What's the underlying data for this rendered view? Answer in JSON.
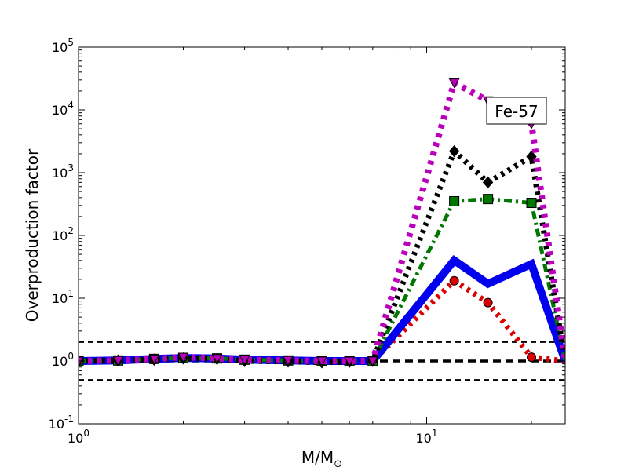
{
  "chart_data": {
    "type": "line",
    "title": "",
    "xlabel_main": "M/M",
    "xlabel_sub": "⊙",
    "ylabel": "Overproduction factor",
    "annotation": "Fe-57",
    "x_scale": "log",
    "y_scale": "log",
    "xlim": [
      1,
      25
    ],
    "ylim": [
      0.1,
      100000
    ],
    "x_ticks": [
      {
        "value": 1,
        "base": "10",
        "exp": "0"
      },
      {
        "value": 10,
        "base": "10",
        "exp": "1"
      }
    ],
    "y_ticks": [
      {
        "value": 0.1,
        "base": "10",
        "exp": "-1"
      },
      {
        "value": 1,
        "base": "10",
        "exp": "0"
      },
      {
        "value": 10,
        "base": "10",
        "exp": "1"
      },
      {
        "value": 100,
        "base": "10",
        "exp": "2"
      },
      {
        "value": 1000,
        "base": "10",
        "exp": "3"
      },
      {
        "value": 10000,
        "base": "10",
        "exp": "4"
      },
      {
        "value": 100000,
        "base": "10",
        "exp": "5"
      }
    ],
    "reference_lines": [
      {
        "y": 2,
        "style": "dashed",
        "color": "#000000"
      },
      {
        "y": 1,
        "style": "dashed-bold",
        "color": "#000000"
      },
      {
        "y": 0.5,
        "style": "dashed",
        "color": "#000000"
      }
    ],
    "series": [
      {
        "color": "#dd0000",
        "style": "dotted",
        "marker": "circle",
        "x": [
          1,
          1.3,
          1.65,
          2,
          2.5,
          3,
          4,
          5,
          6,
          7,
          12,
          15,
          20,
          25
        ],
        "y": [
          1,
          1.02,
          1.08,
          1.12,
          1.1,
          1.05,
          1.02,
          1,
          1,
          1,
          19,
          8.5,
          1.15,
          1
        ]
      },
      {
        "color": "#0000ee",
        "style": "solid",
        "marker": "none",
        "x": [
          1,
          1.3,
          1.65,
          2,
          2.5,
          3,
          4,
          5,
          6,
          7,
          12,
          15,
          20,
          25
        ],
        "y": [
          1,
          1.02,
          1.08,
          1.12,
          1.1,
          1.05,
          1.02,
          1,
          1,
          1,
          40,
          17,
          35,
          1
        ]
      },
      {
        "color": "#007700",
        "style": "dashdot",
        "marker": "square",
        "x": [
          1,
          1.3,
          1.65,
          2,
          2.5,
          3,
          4,
          5,
          6,
          7,
          12,
          15,
          20,
          25
        ],
        "y": [
          1,
          1.02,
          1.08,
          1.12,
          1.1,
          1.05,
          1.02,
          1,
          1,
          1,
          350,
          380,
          330,
          1
        ]
      },
      {
        "color": "#000000",
        "style": "dotted",
        "marker": "diamond",
        "x": [
          1,
          1.3,
          1.65,
          2,
          2.5,
          3,
          4,
          5,
          6,
          7,
          12,
          15,
          20,
          25
        ],
        "y": [
          1,
          1.02,
          1.05,
          1.1,
          1.08,
          1,
          0.98,
          0.95,
          0.97,
          1,
          2200,
          700,
          1800,
          1
        ]
      },
      {
        "color": "#bb00bb",
        "style": "dotted-heavy",
        "marker": "triangle-down",
        "x": [
          1,
          1.3,
          1.65,
          2,
          2.5,
          3,
          4,
          5,
          6,
          7,
          12,
          15,
          20,
          25
        ],
        "y": [
          1,
          1.02,
          1.08,
          1.15,
          1.1,
          1.05,
          1.02,
          1,
          1,
          1,
          27000,
          14000,
          6000,
          1
        ]
      }
    ]
  }
}
